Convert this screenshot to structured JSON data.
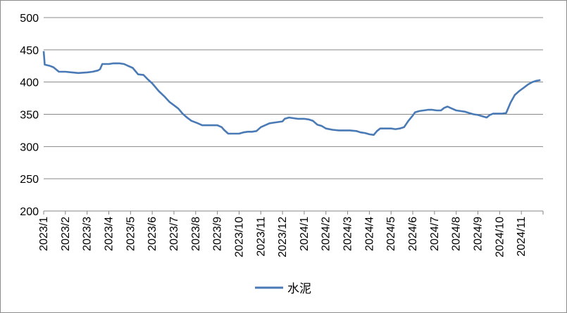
{
  "chart_data": {
    "type": "line",
    "title": "",
    "xlabel": "",
    "ylabel": "",
    "ylim": [
      200,
      500
    ],
    "yticks": [
      200,
      250,
      300,
      350,
      400,
      450,
      500
    ],
    "grid": true,
    "legend_position": "bottom",
    "x_categories": [
      "2023/1",
      "2023/2",
      "2023/3",
      "2023/4",
      "2023/5",
      "2023/6",
      "2023/7",
      "2023/8",
      "2023/9",
      "2023/10",
      "2023/11",
      "2023/12",
      "2024/1",
      "2024/2",
      "2024/3",
      "2024/4",
      "2024/5",
      "2024/6",
      "2024/7",
      "2024/8",
      "2024/9",
      "2024/10",
      "2024/11"
    ],
    "series": [
      {
        "name": "水泥",
        "color": "#4a7ab5",
        "points": [
          [
            0.0,
            448
          ],
          [
            0.05,
            427
          ],
          [
            0.3,
            425
          ],
          [
            0.45,
            423
          ],
          [
            0.7,
            416
          ],
          [
            1.0,
            416
          ],
          [
            1.3,
            415
          ],
          [
            1.6,
            414
          ],
          [
            2.0,
            415
          ],
          [
            2.25,
            416
          ],
          [
            2.5,
            418
          ],
          [
            2.6,
            420
          ],
          [
            2.7,
            428
          ],
          [
            3.0,
            428
          ],
          [
            3.2,
            429
          ],
          [
            3.5,
            429
          ],
          [
            3.7,
            428
          ],
          [
            3.9,
            425
          ],
          [
            4.1,
            422
          ],
          [
            4.35,
            412
          ],
          [
            4.6,
            411
          ],
          [
            4.8,
            404
          ],
          [
            5.0,
            398
          ],
          [
            5.3,
            386
          ],
          [
            5.55,
            378
          ],
          [
            5.8,
            369
          ],
          [
            6.0,
            364
          ],
          [
            6.2,
            359
          ],
          [
            6.4,
            351
          ],
          [
            6.6,
            345
          ],
          [
            6.8,
            340
          ],
          [
            7.1,
            336
          ],
          [
            7.3,
            333
          ],
          [
            7.6,
            333
          ],
          [
            7.85,
            333
          ],
          [
            8.0,
            333
          ],
          [
            8.2,
            330
          ],
          [
            8.3,
            326
          ],
          [
            8.5,
            320
          ],
          [
            8.75,
            320
          ],
          [
            9.0,
            320
          ],
          [
            9.2,
            322
          ],
          [
            9.4,
            323
          ],
          [
            9.6,
            323
          ],
          [
            9.8,
            324
          ],
          [
            10.0,
            330
          ],
          [
            10.2,
            333
          ],
          [
            10.4,
            336
          ],
          [
            10.6,
            337
          ],
          [
            10.8,
            338
          ],
          [
            11.0,
            339
          ],
          [
            11.1,
            343
          ],
          [
            11.3,
            345
          ],
          [
            11.5,
            344
          ],
          [
            11.7,
            343
          ],
          [
            12.0,
            343
          ],
          [
            12.2,
            342
          ],
          [
            12.4,
            340
          ],
          [
            12.6,
            334
          ],
          [
            12.8,
            332
          ],
          [
            13.0,
            328
          ],
          [
            13.3,
            326
          ],
          [
            13.6,
            325
          ],
          [
            13.8,
            325
          ],
          [
            14.1,
            325
          ],
          [
            14.4,
            324
          ],
          [
            14.6,
            322
          ],
          [
            14.8,
            321
          ],
          [
            15.0,
            319
          ],
          [
            15.2,
            318
          ],
          [
            15.35,
            324
          ],
          [
            15.5,
            328
          ],
          [
            15.7,
            328
          ],
          [
            16.0,
            328
          ],
          [
            16.2,
            327
          ],
          [
            16.4,
            328
          ],
          [
            16.6,
            330
          ],
          [
            16.8,
            340
          ],
          [
            17.0,
            348
          ],
          [
            17.1,
            353
          ],
          [
            17.3,
            355
          ],
          [
            17.5,
            356
          ],
          [
            17.7,
            357
          ],
          [
            17.9,
            357
          ],
          [
            18.1,
            356
          ],
          [
            18.3,
            356
          ],
          [
            18.45,
            360
          ],
          [
            18.6,
            362
          ],
          [
            18.8,
            359
          ],
          [
            19.0,
            356
          ],
          [
            19.2,
            355
          ],
          [
            19.4,
            354
          ],
          [
            19.6,
            352
          ],
          [
            19.8,
            350
          ],
          [
            20.0,
            349
          ],
          [
            20.2,
            347
          ],
          [
            20.4,
            345
          ],
          [
            20.55,
            349
          ],
          [
            20.7,
            351
          ],
          [
            20.9,
            351
          ],
          [
            21.1,
            351
          ],
          [
            21.3,
            352
          ],
          [
            21.5,
            368
          ],
          [
            21.7,
            380
          ],
          [
            21.9,
            386
          ],
          [
            22.1,
            391
          ],
          [
            22.3,
            396
          ],
          [
            22.5,
            400
          ],
          [
            22.7,
            402
          ],
          [
            22.88,
            403
          ]
        ]
      }
    ]
  }
}
